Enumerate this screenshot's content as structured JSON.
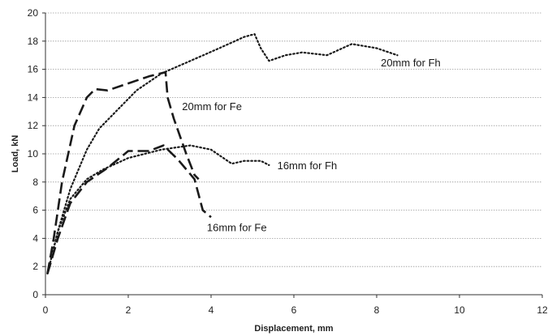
{
  "chart_data": {
    "type": "line",
    "title": "",
    "xlabel": "Displacement, mm",
    "ylabel": "Load, kN",
    "xlim": [
      0,
      12
    ],
    "ylim": [
      0,
      20
    ],
    "xticks": [
      0,
      2,
      4,
      6,
      8,
      10,
      12
    ],
    "yticks": [
      0,
      2,
      4,
      6,
      8,
      10,
      12,
      14,
      16,
      18,
      20
    ],
    "grid": "horizontal dotted",
    "line_color": "#1a1a1a",
    "series": [
      {
        "name": "20mm for Fh",
        "style": "dotted",
        "x": [
          0.05,
          0.3,
          0.6,
          1.0,
          1.3,
          1.7,
          2.2,
          2.8,
          3.5,
          4.2,
          4.8,
          5.05,
          5.2,
          5.4,
          5.8,
          6.2,
          6.8,
          7.4,
          8.0,
          8.5
        ],
        "y": [
          1.5,
          4.5,
          7.5,
          10.3,
          11.8,
          13.0,
          14.5,
          15.7,
          16.6,
          17.5,
          18.3,
          18.5,
          17.5,
          16.6,
          17.0,
          17.2,
          17.0,
          17.8,
          17.5,
          17.0
        ]
      },
      {
        "name": "20mm for Fe",
        "style": "dashed",
        "x": [
          0.05,
          0.2,
          0.4,
          0.7,
          1.0,
          1.2,
          1.5,
          2.0,
          2.5,
          2.9,
          2.95,
          3.1,
          3.4,
          3.6,
          3.7
        ],
        "y": [
          1.5,
          4.0,
          8.0,
          12.0,
          14.0,
          14.6,
          14.5,
          15.0,
          15.5,
          15.8,
          14.0,
          12.5,
          10.0,
          8.5,
          8.2
        ]
      },
      {
        "name": "16mm for Fh",
        "style": "dotted",
        "x": [
          0.05,
          0.3,
          0.6,
          1.0,
          1.4,
          2.0,
          2.8,
          3.5,
          4.0,
          4.5,
          4.8,
          5.2,
          5.4
        ],
        "y": [
          1.5,
          4.5,
          6.8,
          8.2,
          8.9,
          9.7,
          10.3,
          10.6,
          10.3,
          9.3,
          9.5,
          9.5,
          9.2
        ]
      },
      {
        "name": "16mm for Fe",
        "style": "dashed",
        "x": [
          0.05,
          0.3,
          0.6,
          1.0,
          1.5,
          2.0,
          2.5,
          2.85,
          3.2,
          3.6,
          3.8,
          4.0
        ],
        "y": [
          1.5,
          4.0,
          6.5,
          8.0,
          9.0,
          10.2,
          10.2,
          10.6,
          9.6,
          8.2,
          6.0,
          5.5
        ]
      }
    ],
    "annotations": [
      {
        "text": "20mm for Fh",
        "x": 8.1,
        "y": 16.2
      },
      {
        "text": "20mm for Fe",
        "x": 3.3,
        "y": 13.1
      },
      {
        "text": "16mm for Fh",
        "x": 5.6,
        "y": 8.9
      },
      {
        "text": "16mm for Fe",
        "x": 3.9,
        "y": 4.5
      }
    ]
  }
}
